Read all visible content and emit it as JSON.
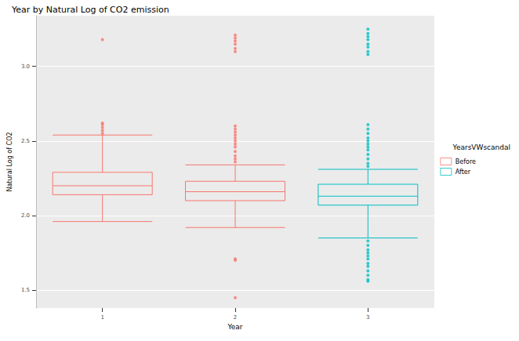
{
  "chart_data": {
    "type": "boxplot",
    "title": "Year by Natural Log of CO2 emission",
    "x_label": "Year",
    "y_label": "Natural Log of CO2",
    "legend_title": "YearsVWscandal",
    "legend": "right",
    "grid": true,
    "categories": [
      "1",
      "2",
      "3"
    ],
    "ylim": [
      1.38,
      3.34
    ],
    "yticks": [
      1.5,
      {
        "value": 2,
        "label": "2.0"
      },
      2.5,
      {
        "value": 3,
        "label": "3.0"
      }
    ],
    "series": [
      {
        "name": "Before",
        "color": "#F8766D",
        "values": [
          [
            1.96,
            2.14,
            2.2,
            2.29,
            2.54
          ],
          [
            1.92,
            2.1,
            2.16,
            2.23,
            2.34
          ],
          null
        ],
        "outliers": [
          [
            2.55,
            2.57,
            2.59,
            2.61,
            2.62,
            3.18
          ],
          [
            2.36,
            2.38,
            2.4,
            2.43,
            2.46,
            2.48,
            2.5,
            2.52,
            2.54,
            2.56,
            2.58,
            2.6,
            3.1,
            3.12,
            3.15,
            3.17,
            3.19,
            3.21,
            1.71,
            1.7,
            1.45
          ],
          null
        ]
      },
      {
        "name": "After",
        "color": "#00BFC4",
        "values": [
          null,
          null,
          [
            1.85,
            2.07,
            2.13,
            2.21,
            2.31
          ]
        ],
        "outliers": [
          null,
          null,
          [
            2.33,
            2.35,
            2.38,
            2.41,
            2.44,
            2.46,
            2.48,
            2.5,
            2.52,
            2.55,
            2.58,
            2.61,
            3.08,
            3.1,
            3.13,
            3.15,
            3.18,
            3.2,
            3.22,
            3.25,
            1.83,
            1.8,
            1.77,
            1.75,
            1.73,
            1.71,
            1.68,
            1.66,
            1.63,
            1.6,
            1.57,
            1.56
          ]
        ]
      }
    ]
  }
}
